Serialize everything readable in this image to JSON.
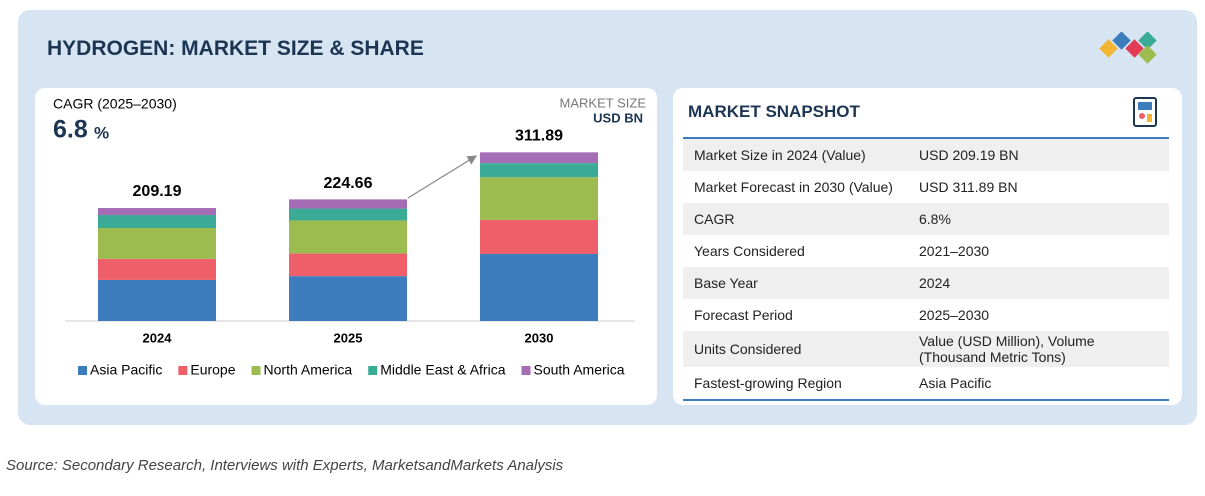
{
  "header": {
    "title": "HYDROGEN: MARKET SIZE & SHARE"
  },
  "chart_data": {
    "type": "bar",
    "stacked": true,
    "cagr_label": "CAGR (2025–2030)",
    "cagr_value": 6.8,
    "cagr_unit": "%",
    "unit_label": "MARKET SIZE",
    "unit": "USD BN",
    "categories": [
      "2024",
      "2025",
      "2030"
    ],
    "totals": [
      209.19,
      224.66,
      311.89
    ],
    "series": [
      {
        "name": "Asia Pacific",
        "color": "#3d7cbd",
        "values": [
          76,
          83,
          124
        ]
      },
      {
        "name": "Europe",
        "color": "#ee5f69",
        "values": [
          39,
          42,
          63
        ]
      },
      {
        "name": "North America",
        "color": "#9dbc50",
        "values": [
          57,
          61,
          79
        ]
      },
      {
        "name": "Middle East & Africa",
        "color": "#3aab96",
        "values": [
          24,
          22,
          26
        ]
      },
      {
        "name": "South America",
        "color": "#a56db6",
        "values": [
          13,
          17,
          20
        ]
      }
    ],
    "ylim": [
      0,
      320
    ]
  },
  "snapshot": {
    "title": "MARKET SNAPSHOT",
    "rows": [
      [
        "Market Size in 2024 (Value)",
        "USD 209.19 BN"
      ],
      [
        "Market Forecast in 2030 (Value)",
        "USD 311.89 BN"
      ],
      [
        "CAGR",
        "6.8%"
      ],
      [
        "Years Considered",
        "2021–2030"
      ],
      [
        "Base Year",
        "2024"
      ],
      [
        "Forecast Period",
        "2025–2030"
      ],
      [
        "Units Considered",
        "Value (USD Million), Volume (Thousand Metric Tons)"
      ],
      [
        "Fastest-growing Region",
        "Asia Pacific"
      ]
    ]
  },
  "source": "Source: Secondary Research, Interviews with Experts, MarketsandMarkets Analysis"
}
